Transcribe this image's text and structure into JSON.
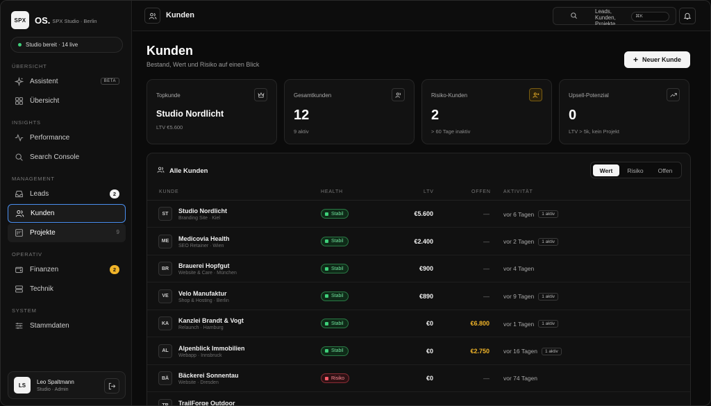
{
  "brand": {
    "logo": "SPX",
    "name": "OS.",
    "sub": "SPX Studio · Berlin"
  },
  "status": {
    "text": "Studio bereit · 14 live",
    "color": "#3fd07a"
  },
  "sidebar": {
    "sections": {
      "uebersicht": "ÜBERSICHT",
      "insights": "INSIGHTS",
      "management": "MANAGEMENT",
      "operativ": "OPERATIV",
      "system": "SYSTEM"
    },
    "items": {
      "assistent": {
        "label": "Assistent",
        "badge": "BETA",
        "icon": "sparkle-icon"
      },
      "uebersicht": {
        "label": "Übersicht",
        "icon": "grid-icon"
      },
      "performance": {
        "label": "Performance",
        "icon": "activity-icon"
      },
      "search_console": {
        "label": "Search Console",
        "icon": "search-icon"
      },
      "leads": {
        "label": "Leads",
        "badge": "2",
        "icon": "inbox-icon"
      },
      "kunden": {
        "label": "Kunden",
        "icon": "users-icon"
      },
      "projekte": {
        "label": "Projekte",
        "badge": "9",
        "icon": "kanban-icon"
      },
      "finanzen": {
        "label": "Finanzen",
        "badge": "2",
        "icon": "wallet-icon"
      },
      "technik": {
        "label": "Technik",
        "icon": "server-icon"
      },
      "stammdaten": {
        "label": "Stammdaten",
        "icon": "sliders-icon"
      }
    }
  },
  "user": {
    "initials": "LS",
    "name": "Leo Spaltmann",
    "role": "Studio · Admin"
  },
  "topbar": {
    "title": "Kunden",
    "search_text": "Leads, Kunden, Projekte...",
    "kbd": "⌘K"
  },
  "page": {
    "title": "Kunden",
    "subtitle": "Bestand, Wert und Risiko auf einen Blick",
    "new_button": "Neuer Kunde"
  },
  "cards": [
    {
      "label": "Topkunde",
      "value": "Studio Nordlicht",
      "note": "LTV €5.600",
      "icon": "crown-icon"
    },
    {
      "label": "Gesamtkunden",
      "value": "12",
      "note": "9 aktiv",
      "icon": "users-icon"
    },
    {
      "label": "Risiko-Kunden",
      "value": "2",
      "note": "> 60 Tage inaktiv",
      "icon": "user-alert-icon"
    },
    {
      "label": "Upsell-Potenzial",
      "value": "0",
      "note": "LTV > 5k, kein Projekt",
      "icon": "trend-up-icon"
    }
  ],
  "table": {
    "title": "Alle Kunden",
    "segments": [
      "Wert",
      "Risiko",
      "Offen"
    ],
    "active_segment": "Wert",
    "columns": [
      "KUNDE",
      "HEALTH",
      "LTV",
      "OFFEN",
      "AKTIVITÄT"
    ],
    "rows": [
      {
        "initials": "ST",
        "name": "Studio Nordlicht",
        "sub": "Branding Site · Kiel",
        "health": "Stabil",
        "ltv": "€5.600",
        "offen": "—",
        "aktivitaet": "vor 6 Tagen",
        "badge": "1 aktiv"
      },
      {
        "initials": "ME",
        "name": "Medicovia Health",
        "sub": "SEO Retainer · Wien",
        "health": "Stabil",
        "ltv": "€2.400",
        "offen": "—",
        "aktivitaet": "vor 2 Tagen",
        "badge": "1 aktiv"
      },
      {
        "initials": "BR",
        "name": "Brauerei Hopfgut",
        "sub": "Website & Care · München",
        "health": "Stabil",
        "ltv": "€900",
        "offen": "—",
        "aktivitaet": "vor 4 Tagen",
        "badge": ""
      },
      {
        "initials": "VE",
        "name": "Velo Manufaktur",
        "sub": "Shop & Hosting · Berlin",
        "health": "Stabil",
        "ltv": "€890",
        "offen": "—",
        "aktivitaet": "vor 9 Tagen",
        "badge": "1 aktiv"
      },
      {
        "initials": "KA",
        "name": "Kanzlei Brandt & Vogt",
        "sub": "Relaunch · Hamburg",
        "health": "Stabil",
        "ltv": "€0",
        "offen": "€6.800",
        "aktivitaet": "vor 1 Tagen",
        "badge": "1 aktiv"
      },
      {
        "initials": "AL",
        "name": "Alpenblick Immobilien",
        "sub": "Webapp · Innsbruck",
        "health": "Stabil",
        "ltv": "€0",
        "offen": "€2.750",
        "aktivitaet": "vor 16 Tagen",
        "badge": "1 aktiv"
      },
      {
        "initials": "BÄ",
        "name": "Bäckerei Sonnentau",
        "sub": "Website · Dresden",
        "health": "Risiko",
        "ltv": "€0",
        "offen": "—",
        "aktivitaet": "vor 74 Tagen",
        "badge": ""
      },
      {
        "initials": "TR",
        "name": "TrailForge Outdoor",
        "sub": "",
        "health": "",
        "ltv": "",
        "offen": "",
        "aktivitaet": "",
        "badge": ""
      }
    ]
  }
}
